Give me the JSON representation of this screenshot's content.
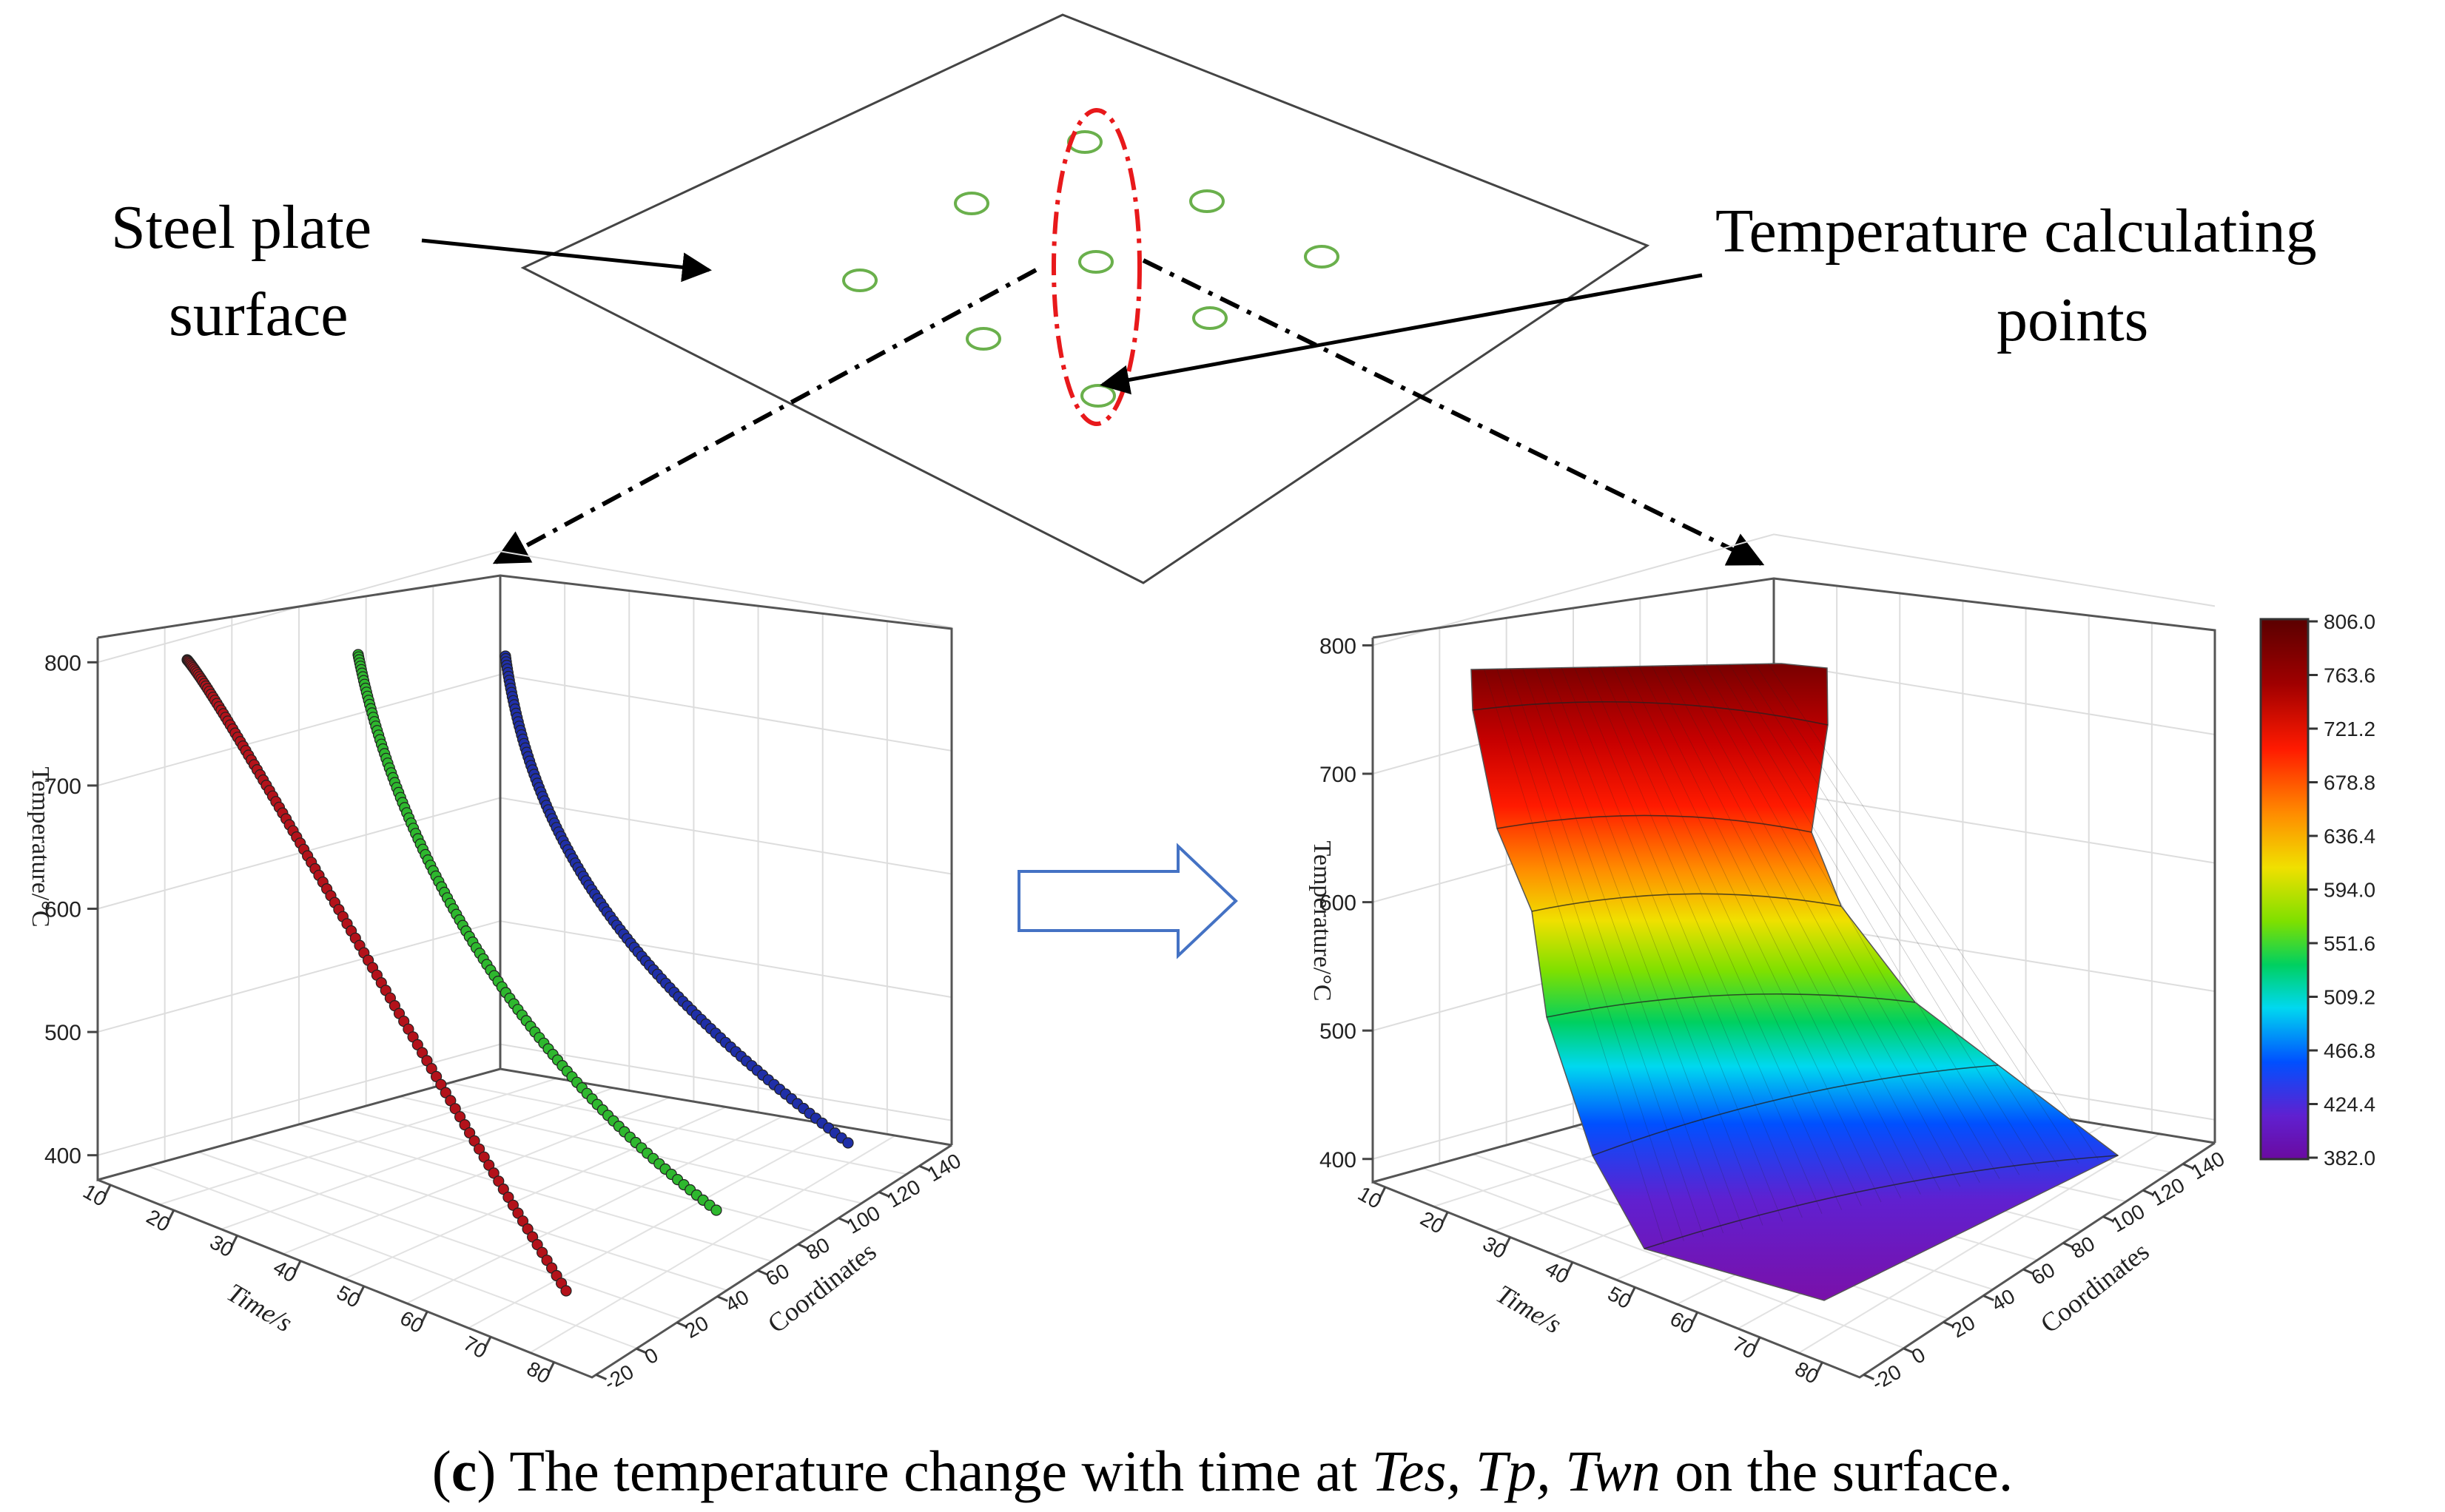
{
  "diagram": {
    "steel_label_line1": "Steel plate",
    "steel_label_line2": "surface",
    "temp_label_line1": "Temperature calculating",
    "temp_label_line2": "points"
  },
  "caption": {
    "open_paren": "(",
    "letter": "c",
    "close_paren": ")",
    "text_before": " The temperature change with time at ",
    "vars": "Tes, Tp, Twn",
    "text_after": " on the surface."
  },
  "colors": {
    "red_series": "#b3121a",
    "green_series": "#2eb82e",
    "blue_series": "#1f2fa8",
    "ellipse_red": "#e8191b",
    "point_green": "#6ab04c",
    "arrow_blue": "#4472c4"
  },
  "chart_data": [
    {
      "type": "scatter",
      "title": "",
      "zlabel": "Temperature/°C",
      "xlabel": "Time/s",
      "ylabel": "Coordinates",
      "z_ticks": [
        "400",
        "500",
        "600",
        "700",
        "800"
      ],
      "time_ticks": [
        "10",
        "20",
        "30",
        "40",
        "50",
        "60",
        "70",
        "80"
      ],
      "coord_ticks": [
        "-20",
        "0",
        "20",
        "40",
        "60",
        "80",
        "100",
        "120",
        "140"
      ],
      "zlim": [
        380,
        820
      ],
      "series": [
        {
          "name": "Tes",
          "color": "#b3121a",
          "start_temp": 806,
          "end_temp": 460
        },
        {
          "name": "Tp",
          "color": "#2eb82e",
          "start_temp": 810,
          "end_temp": 470
        },
        {
          "name": "Twn",
          "color": "#1f2fa8",
          "start_temp": 812,
          "end_temp": 480
        }
      ]
    },
    {
      "type": "surface",
      "title": "",
      "zlabel": "Temperature/°C",
      "xlabel": "Time/s",
      "ylabel": "Coordinates",
      "z_ticks": [
        "400",
        "500",
        "600",
        "700",
        "800"
      ],
      "time_ticks": [
        "10",
        "20",
        "30",
        "40",
        "50",
        "60",
        "70",
        "80"
      ],
      "coord_ticks": [
        "-20",
        "0",
        "20",
        "40",
        "60",
        "80",
        "100",
        "120",
        "140"
      ],
      "colorbar": [
        "806.0",
        "763.6",
        "721.2",
        "678.8",
        "636.4",
        "594.0",
        "551.6",
        "509.2",
        "466.8",
        "424.4",
        "382.0"
      ],
      "zlim": [
        382.0,
        806.0
      ]
    }
  ]
}
